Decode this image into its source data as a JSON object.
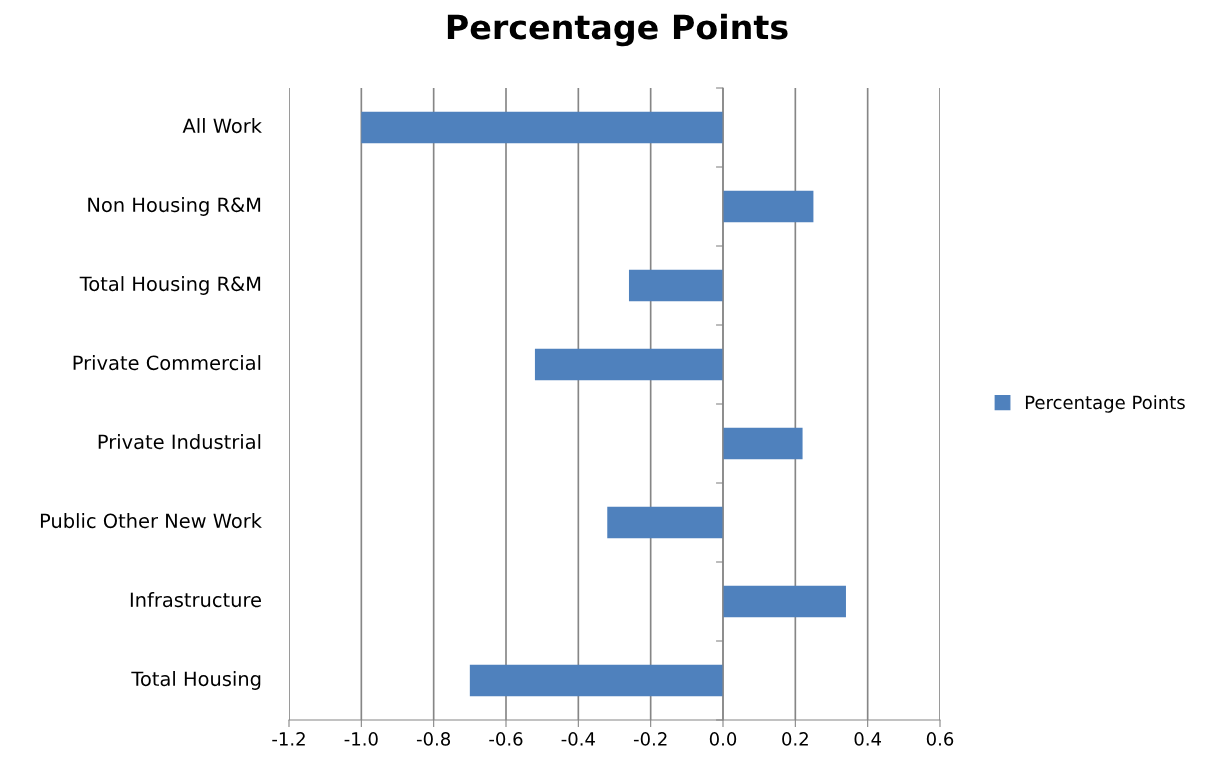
{
  "chart_data": {
    "type": "bar",
    "orientation": "horizontal",
    "title": "Percentage Points",
    "categories": [
      "All Work",
      "Non Housing R&M",
      "Total Housing R&M",
      "Private Commercial",
      "Private Industrial",
      "Public Other New Work",
      "Infrastructure",
      "Total Housing"
    ],
    "series": [
      {
        "name": "Percentage Points",
        "color": "#4f81bd",
        "values": [
          -1.0,
          0.25,
          -0.26,
          -0.52,
          0.22,
          -0.32,
          0.34,
          -0.7
        ]
      }
    ],
    "xlim": [
      -1.2,
      0.6
    ],
    "xticks": [
      {
        "value": -1.2,
        "label": "-1.2"
      },
      {
        "value": -1.0,
        "label": "-1.0"
      },
      {
        "value": -0.8,
        "label": "-0.8"
      },
      {
        "value": -0.6,
        "label": "-0.6"
      },
      {
        "value": -0.4,
        "label": "-0.4"
      },
      {
        "value": -0.2,
        "label": "-0.2"
      },
      {
        "value": 0.0,
        "label": "0.0"
      },
      {
        "value": 0.2,
        "label": "0.2"
      },
      {
        "value": 0.4,
        "label": "0.4"
      },
      {
        "value": 0.6,
        "label": "0.6"
      }
    ],
    "grid": "x",
    "legend": "right"
  }
}
